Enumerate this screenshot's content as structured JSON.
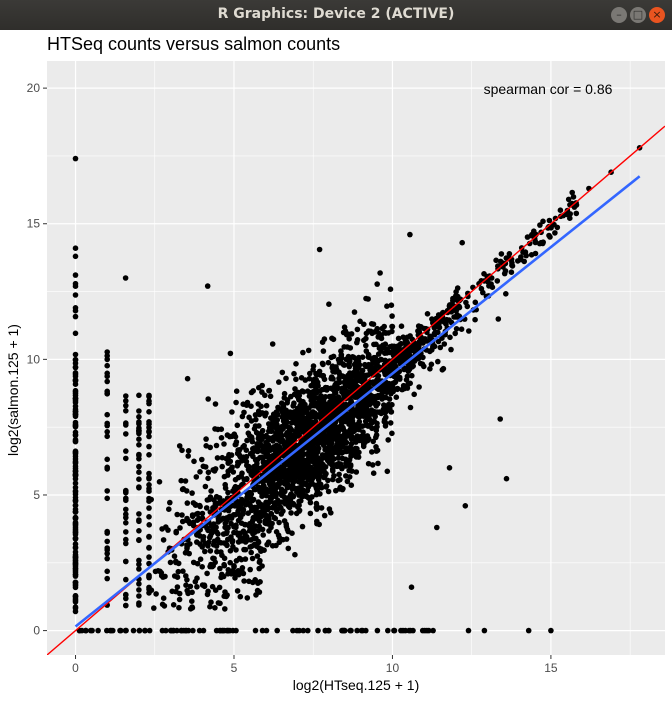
{
  "window": {
    "title": "R Graphics: Device 2 (ACTIVE)",
    "minimize_glyph": "–",
    "maximize_glyph": "□",
    "close_glyph": "×"
  },
  "chart_data": {
    "type": "scatter",
    "title": "HTSeq counts versus salmon counts",
    "xlabel": "log2(HTseq.125 + 1)",
    "ylabel": "log2(salmon.125 + 1)",
    "annotation": "spearman cor = 0.86",
    "xlim": [
      -0.9,
      18.6
    ],
    "ylim": [
      -0.9,
      21.0
    ],
    "x_ticks": [
      0,
      5,
      10,
      15
    ],
    "y_ticks": [
      0,
      5,
      10,
      15,
      20
    ],
    "grid": true,
    "colors": {
      "panel": "#ebebeb",
      "grid": "#ffffff",
      "points": "#000000",
      "identity_line": "#ff0000",
      "fit_line": "#3366ff"
    },
    "lines": [
      {
        "name": "identity",
        "color": "#ff0000",
        "x": [
          -0.9,
          18.6
        ],
        "y": [
          -0.9,
          18.6
        ]
      },
      {
        "name": "fit",
        "color": "#3366ff",
        "x": [
          0.0,
          17.8
        ],
        "y": [
          0.15,
          16.75
        ]
      }
    ],
    "points_outliers": [
      {
        "x": 0,
        "y": 17.4
      },
      {
        "x": 0,
        "y": 14.1
      },
      {
        "x": 0,
        "y": 13.8
      },
      {
        "x": 1.58,
        "y": 13.0
      },
      {
        "x": 4.17,
        "y": 12.7
      },
      {
        "x": 7.7,
        "y": 14.05
      },
      {
        "x": 10.55,
        "y": 14.6
      },
      {
        "x": 12.2,
        "y": 14.3
      },
      {
        "x": 11.8,
        "y": 6.0
      },
      {
        "x": 12.3,
        "y": 4.6
      },
      {
        "x": 13.4,
        "y": 7.8
      },
      {
        "x": 13.6,
        "y": 5.6
      },
      {
        "x": 11.4,
        "y": 3.8
      },
      {
        "x": 10.6,
        "y": 1.6
      },
      {
        "x": 12.4,
        "y": 0.0
      },
      {
        "x": 12.9,
        "y": 0.0
      },
      {
        "x": 14.3,
        "y": 0.0
      },
      {
        "x": 15.0,
        "y": 0.0
      },
      {
        "x": 17.8,
        "y": 17.8
      },
      {
        "x": 16.9,
        "y": 16.9
      },
      {
        "x": 16.2,
        "y": 16.3
      },
      {
        "x": 15.6,
        "y": 15.7
      },
      {
        "x": 15.3,
        "y": 15.5
      }
    ]
  }
}
